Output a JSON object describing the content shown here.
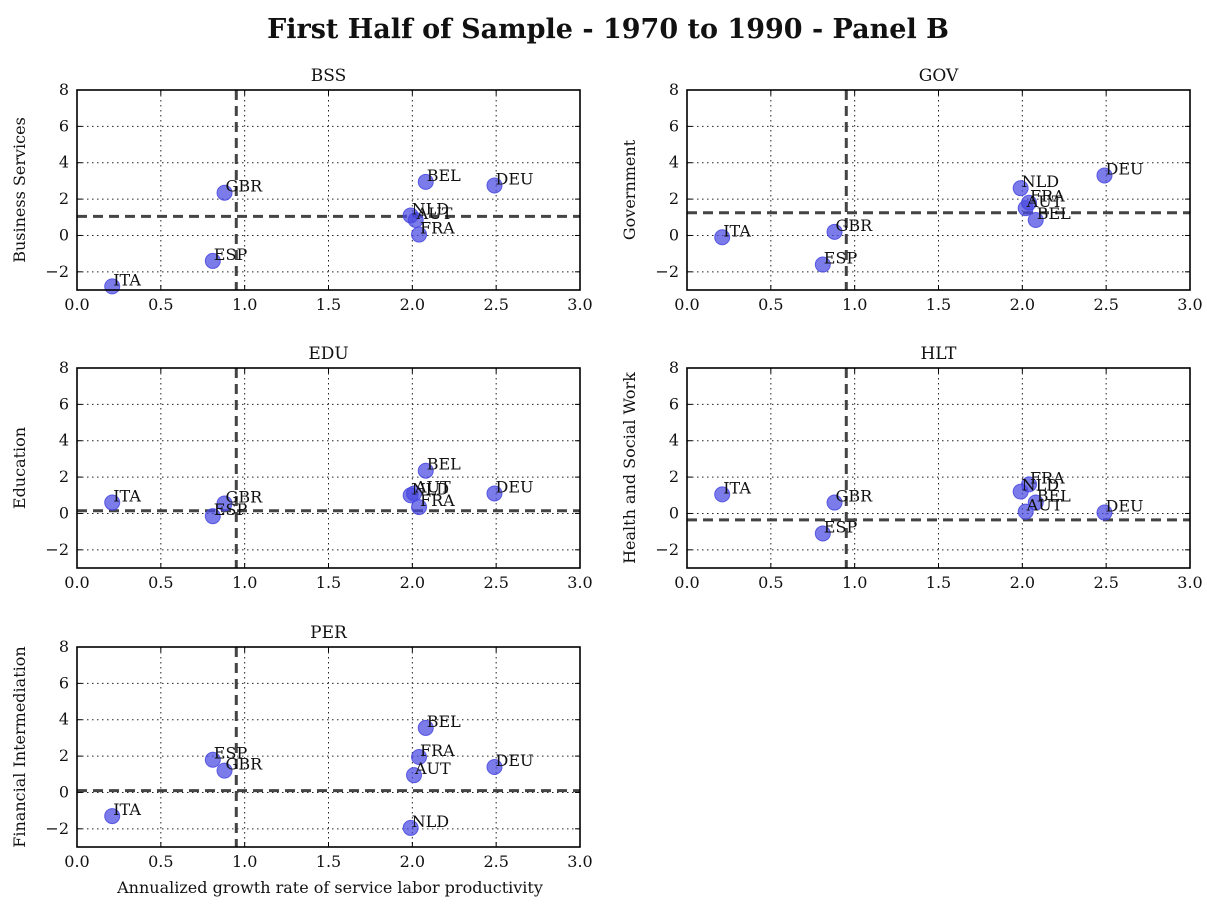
{
  "title": "First Half of Sample - 1970 to 1990 - Panel B",
  "xlabel": "Annualized growth rate of service labor productivity",
  "chart_data": [
    {
      "type": "scatter",
      "title": "BSS",
      "ylabel": "Business Services",
      "xlim": [
        0,
        3
      ],
      "ylim": [
        -3,
        8
      ],
      "xticks": [
        "0.0",
        "0.5",
        "1.0",
        "1.5",
        "2.0",
        "2.5",
        "3.0"
      ],
      "yticks": [
        "−2",
        "0",
        "2",
        "4",
        "6",
        "8"
      ],
      "ref_x": 0.95,
      "ref_y": 1.05,
      "grid": true,
      "points": [
        {
          "label": "ITA",
          "x": 0.21,
          "y": -2.8
        },
        {
          "label": "ESP",
          "x": 0.81,
          "y": -1.4
        },
        {
          "label": "GBR",
          "x": 0.88,
          "y": 2.35
        },
        {
          "label": "NLD",
          "x": 1.99,
          "y": 1.1
        },
        {
          "label": "AUT",
          "x": 2.02,
          "y": 0.85
        },
        {
          "label": "FRA",
          "x": 2.04,
          "y": 0.05
        },
        {
          "label": "BEL",
          "x": 2.08,
          "y": 2.95
        },
        {
          "label": "DEU",
          "x": 2.49,
          "y": 2.75
        }
      ]
    },
    {
      "type": "scatter",
      "title": "GOV",
      "ylabel": "Government",
      "xlim": [
        0,
        3
      ],
      "ylim": [
        -3,
        8
      ],
      "xticks": [
        "0.0",
        "0.5",
        "1.0",
        "1.5",
        "2.0",
        "2.5",
        "3.0"
      ],
      "yticks": [
        "−2",
        "0",
        "2",
        "4",
        "6",
        "8"
      ],
      "ref_x": 0.95,
      "ref_y": 1.25,
      "grid": true,
      "points": [
        {
          "label": "ITA",
          "x": 0.21,
          "y": -0.1
        },
        {
          "label": "ESP",
          "x": 0.81,
          "y": -1.6
        },
        {
          "label": "GBR",
          "x": 0.88,
          "y": 0.2
        },
        {
          "label": "NLD",
          "x": 1.99,
          "y": 2.6
        },
        {
          "label": "AUT",
          "x": 2.02,
          "y": 1.5
        },
        {
          "label": "FRA",
          "x": 2.04,
          "y": 1.8
        },
        {
          "label": "BEL",
          "x": 2.08,
          "y": 0.85
        },
        {
          "label": "DEU",
          "x": 2.49,
          "y": 3.3
        }
      ]
    },
    {
      "type": "scatter",
      "title": "EDU",
      "ylabel": "Education",
      "xlim": [
        0,
        3
      ],
      "ylim": [
        -3,
        8
      ],
      "xticks": [
        "0.0",
        "0.5",
        "1.0",
        "1.5",
        "2.0",
        "2.5",
        "3.0"
      ],
      "yticks": [
        "−2",
        "0",
        "2",
        "4",
        "6",
        "8"
      ],
      "ref_x": 0.95,
      "ref_y": 0.15,
      "grid": true,
      "points": [
        {
          "label": "ITA",
          "x": 0.21,
          "y": 0.6
        },
        {
          "label": "ESP",
          "x": 0.81,
          "y": -0.15
        },
        {
          "label": "GBR",
          "x": 0.88,
          "y": 0.55
        },
        {
          "label": "NLD",
          "x": 1.99,
          "y": 1.0
        },
        {
          "label": "AUT",
          "x": 2.01,
          "y": 1.1
        },
        {
          "label": "FRA",
          "x": 2.04,
          "y": 0.35
        },
        {
          "label": "BEL",
          "x": 2.08,
          "y": 2.35
        },
        {
          "label": "DEU",
          "x": 2.49,
          "y": 1.1
        }
      ]
    },
    {
      "type": "scatter",
      "title": "HLT",
      "ylabel": "Health and Social Work",
      "xlim": [
        0,
        3
      ],
      "ylim": [
        -3,
        8
      ],
      "xticks": [
        "0.0",
        "0.5",
        "1.0",
        "1.5",
        "2.0",
        "2.5",
        "3.0"
      ],
      "yticks": [
        "−2",
        "0",
        "2",
        "4",
        "6",
        "8"
      ],
      "ref_x": 0.95,
      "ref_y": -0.35,
      "grid": true,
      "points": [
        {
          "label": "ITA",
          "x": 0.21,
          "y": 1.05
        },
        {
          "label": "ESP",
          "x": 0.81,
          "y": -1.1
        },
        {
          "label": "GBR",
          "x": 0.88,
          "y": 0.6
        },
        {
          "label": "NLD",
          "x": 1.99,
          "y": 1.2
        },
        {
          "label": "AUT",
          "x": 2.02,
          "y": 0.1
        },
        {
          "label": "FRA",
          "x": 2.04,
          "y": 1.6
        },
        {
          "label": "BEL",
          "x": 2.08,
          "y": 0.6
        },
        {
          "label": "DEU",
          "x": 2.49,
          "y": 0.05
        }
      ]
    },
    {
      "type": "scatter",
      "title": "PER",
      "ylabel": "Financial Intermediation",
      "xlim": [
        0,
        3
      ],
      "ylim": [
        -3,
        8
      ],
      "xticks": [
        "0.0",
        "0.5",
        "1.0",
        "1.5",
        "2.0",
        "2.5",
        "3.0"
      ],
      "yticks": [
        "−2",
        "0",
        "2",
        "4",
        "6",
        "8"
      ],
      "ref_x": 0.95,
      "ref_y": 0.1,
      "grid": true,
      "points": [
        {
          "label": "ITA",
          "x": 0.21,
          "y": -1.3
        },
        {
          "label": "ESP",
          "x": 0.81,
          "y": 1.8
        },
        {
          "label": "GBR",
          "x": 0.88,
          "y": 1.2
        },
        {
          "label": "NLD",
          "x": 1.99,
          "y": -1.95
        },
        {
          "label": "AUT",
          "x": 2.01,
          "y": 0.95
        },
        {
          "label": "FRA",
          "x": 2.04,
          "y": 1.95
        },
        {
          "label": "BEL",
          "x": 2.08,
          "y": 3.55
        },
        {
          "label": "DEU",
          "x": 2.49,
          "y": 1.4
        }
      ]
    }
  ]
}
